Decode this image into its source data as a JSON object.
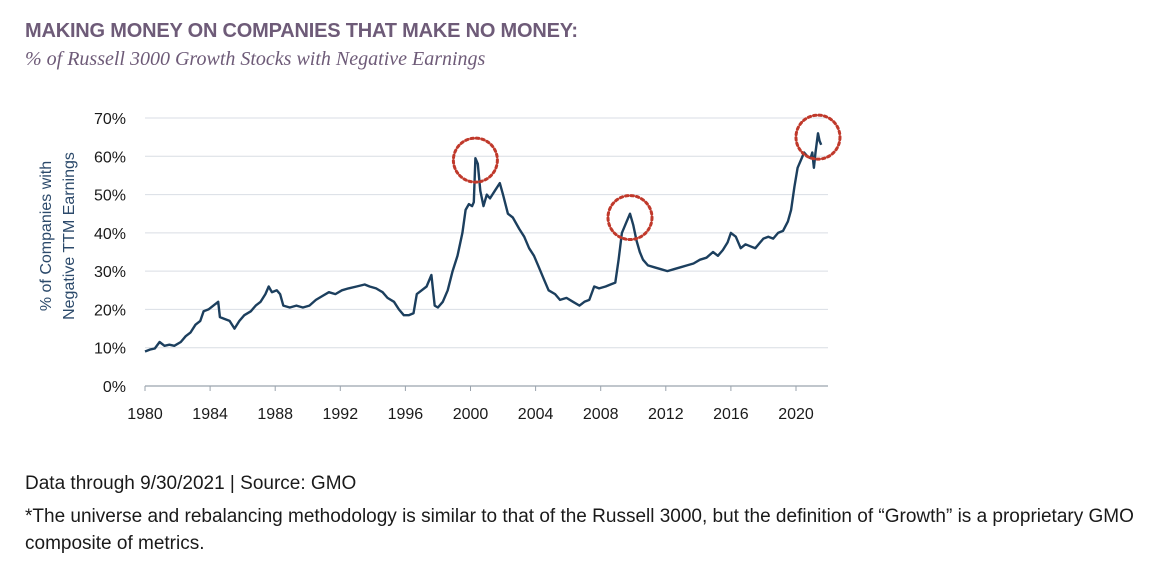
{
  "title": "MAKING MONEY ON COMPANIES THAT MAKE NO MONEY:",
  "subtitle": "% of Russell 3000 Growth Stocks with Negative Earnings",
  "footer": {
    "source": "Data through 9/30/2021 | Source: GMO",
    "note": "*The universe and rebalancing methodology is similar to that of the Russell 3000, but the definition of “Growth” is a proprietary GMO composite of metrics."
  },
  "colors": {
    "title": "#6e5b78",
    "line": "#1c3f5e",
    "grid": "#d9dee4",
    "highlight_circle": "#c0392b"
  },
  "chart_data": {
    "type": "line",
    "title": "% of Russell 3000 Growth Stocks with Negative Earnings",
    "ylabel_lines": [
      "% of Companies with",
      "Negative TTM Earnings"
    ],
    "xlabel": "",
    "xlim": [
      1980,
      2021.75
    ],
    "ylim": [
      0,
      70
    ],
    "x_ticks": [
      "1980",
      "1984",
      "1988",
      "1992",
      "1996",
      "2000",
      "2004",
      "2008",
      "2012",
      "2016",
      "2020"
    ],
    "y_ticks": [
      "0%",
      "10%",
      "20%",
      "30%",
      "40%",
      "50%",
      "60%",
      "70%"
    ],
    "grid": "horizontal",
    "series": [
      {
        "values_pct": [
          [
            1980.0,
            9
          ],
          [
            1980.3,
            9.5
          ],
          [
            1980.6,
            9.8
          ],
          [
            1980.9,
            11.5
          ],
          [
            1981.2,
            10.5
          ],
          [
            1981.5,
            10.8
          ],
          [
            1981.8,
            10.5
          ],
          [
            1982.2,
            11.5
          ],
          [
            1982.5,
            13
          ],
          [
            1982.8,
            14
          ],
          [
            1983.1,
            16
          ],
          [
            1983.4,
            17
          ],
          [
            1983.6,
            19.5
          ],
          [
            1983.9,
            20
          ],
          [
            1984.2,
            21
          ],
          [
            1984.5,
            22
          ],
          [
            1984.6,
            18
          ],
          [
            1984.9,
            17.5
          ],
          [
            1985.2,
            17
          ],
          [
            1985.5,
            15
          ],
          [
            1985.8,
            17
          ],
          [
            1986.1,
            18.5
          ],
          [
            1986.5,
            19.5
          ],
          [
            1986.8,
            21
          ],
          [
            1987.1,
            22
          ],
          [
            1987.4,
            24
          ],
          [
            1987.6,
            26
          ],
          [
            1987.8,
            24.5
          ],
          [
            1988.1,
            25
          ],
          [
            1988.3,
            24
          ],
          [
            1988.5,
            21
          ],
          [
            1988.9,
            20.5
          ],
          [
            1989.3,
            21
          ],
          [
            1989.7,
            20.5
          ],
          [
            1990.1,
            21
          ],
          [
            1990.5,
            22.5
          ],
          [
            1990.9,
            23.5
          ],
          [
            1991.3,
            24.5
          ],
          [
            1991.7,
            24
          ],
          [
            1992.1,
            25
          ],
          [
            1992.5,
            25.5
          ],
          [
            1993.0,
            26
          ],
          [
            1993.5,
            26.5
          ],
          [
            1993.8,
            26
          ],
          [
            1994.2,
            25.5
          ],
          [
            1994.6,
            24.5
          ],
          [
            1994.9,
            23
          ],
          [
            1995.3,
            22
          ],
          [
            1995.6,
            20
          ],
          [
            1995.9,
            18.5
          ],
          [
            1996.2,
            18.5
          ],
          [
            1996.5,
            19
          ],
          [
            1996.7,
            24
          ],
          [
            1997.0,
            25
          ],
          [
            1997.3,
            26
          ],
          [
            1997.6,
            29
          ],
          [
            1997.8,
            21
          ],
          [
            1998.0,
            20.5
          ],
          [
            1998.3,
            22
          ],
          [
            1998.6,
            25
          ],
          [
            1998.9,
            30
          ],
          [
            1999.2,
            34
          ],
          [
            1999.5,
            40
          ],
          [
            1999.7,
            46
          ],
          [
            1999.9,
            47.5
          ],
          [
            2000.1,
            47
          ],
          [
            2000.2,
            48
          ],
          [
            2000.3,
            59.5
          ],
          [
            2000.45,
            58
          ],
          [
            2000.6,
            51
          ],
          [
            2000.8,
            47
          ],
          [
            2001.0,
            50
          ],
          [
            2001.2,
            49
          ],
          [
            2001.5,
            51
          ],
          [
            2001.8,
            53
          ],
          [
            2002.0,
            50
          ],
          [
            2002.3,
            45
          ],
          [
            2002.6,
            44
          ],
          [
            2003.0,
            41
          ],
          [
            2003.3,
            39
          ],
          [
            2003.6,
            36
          ],
          [
            2003.9,
            34
          ],
          [
            2004.2,
            31
          ],
          [
            2004.5,
            28
          ],
          [
            2004.8,
            25
          ],
          [
            2005.2,
            24
          ],
          [
            2005.5,
            22.5
          ],
          [
            2005.9,
            23
          ],
          [
            2006.3,
            22
          ],
          [
            2006.7,
            21
          ],
          [
            2007.0,
            22
          ],
          [
            2007.3,
            22.5
          ],
          [
            2007.6,
            26
          ],
          [
            2007.9,
            25.5
          ],
          [
            2008.3,
            26
          ],
          [
            2008.6,
            26.5
          ],
          [
            2008.9,
            27
          ],
          [
            2009.1,
            33
          ],
          [
            2009.3,
            40
          ],
          [
            2009.6,
            43
          ],
          [
            2009.8,
            45
          ],
          [
            2010.0,
            42
          ],
          [
            2010.2,
            38
          ],
          [
            2010.4,
            35
          ],
          [
            2010.6,
            33
          ],
          [
            2010.9,
            31.5
          ],
          [
            2011.3,
            31
          ],
          [
            2011.7,
            30.5
          ],
          [
            2012.1,
            30
          ],
          [
            2012.5,
            30.5
          ],
          [
            2012.9,
            31
          ],
          [
            2013.3,
            31.5
          ],
          [
            2013.7,
            32
          ],
          [
            2014.1,
            33
          ],
          [
            2014.5,
            33.5
          ],
          [
            2014.9,
            35
          ],
          [
            2015.2,
            34
          ],
          [
            2015.5,
            35.5
          ],
          [
            2015.8,
            37.5
          ],
          [
            2016.0,
            40
          ],
          [
            2016.3,
            39
          ],
          [
            2016.6,
            36
          ],
          [
            2016.9,
            37
          ],
          [
            2017.2,
            36.5
          ],
          [
            2017.5,
            36
          ],
          [
            2017.8,
            37.5
          ],
          [
            2018.0,
            38.5
          ],
          [
            2018.3,
            39
          ],
          [
            2018.6,
            38.5
          ],
          [
            2018.9,
            40
          ],
          [
            2019.2,
            40.5
          ],
          [
            2019.5,
            43
          ],
          [
            2019.7,
            46
          ],
          [
            2019.9,
            52
          ],
          [
            2020.1,
            57
          ],
          [
            2020.3,
            59
          ],
          [
            2020.5,
            61
          ],
          [
            2020.7,
            60
          ],
          [
            2020.9,
            59.5
          ],
          [
            2021.0,
            61
          ],
          [
            2021.1,
            57
          ],
          [
            2021.2,
            61
          ],
          [
            2021.35,
            66
          ],
          [
            2021.45,
            64
          ],
          [
            2021.55,
            63
          ]
        ]
      }
    ],
    "highlights": [
      {
        "x": 2000.3,
        "y": 59
      },
      {
        "x": 2009.8,
        "y": 44
      },
      {
        "x": 2021.35,
        "y": 65
      }
    ]
  }
}
